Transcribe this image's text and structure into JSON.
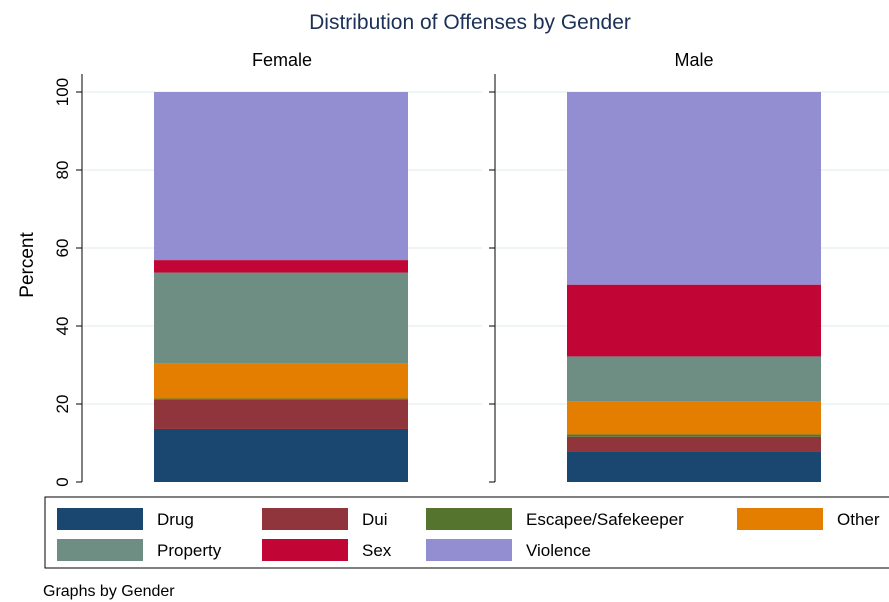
{
  "chart_data": {
    "type": "bar",
    "stacked": true,
    "title": "Distribution of Offenses by Gender",
    "ylabel": "Percent",
    "ylim": [
      0,
      100
    ],
    "yticks": [
      0,
      20,
      40,
      60,
      80,
      100
    ],
    "grid": true,
    "legend_position": "bottom",
    "note": "Graphs by Gender",
    "panels": [
      "Female",
      "Male"
    ],
    "series": [
      {
        "name": "Drug",
        "color": "#1a476f",
        "values": [
          13.6,
          7.8
        ]
      },
      {
        "name": "Dui",
        "color": "#90353b",
        "values": [
          7.6,
          3.8
        ]
      },
      {
        "name": "Escapee/Safekeeper",
        "color": "#55752f",
        "values": [
          0.2,
          0.6
        ]
      },
      {
        "name": "Other",
        "color": "#e37e00",
        "values": [
          8.9,
          8.4
        ]
      },
      {
        "name": "Property",
        "color": "#6e8e84",
        "values": [
          23.4,
          11.6
        ]
      },
      {
        "name": "Sex",
        "color": "#c10534",
        "values": [
          3.2,
          18.4
        ]
      },
      {
        "name": "Violence",
        "color": "#938dd2",
        "values": [
          43.1,
          49.4
        ]
      }
    ]
  }
}
